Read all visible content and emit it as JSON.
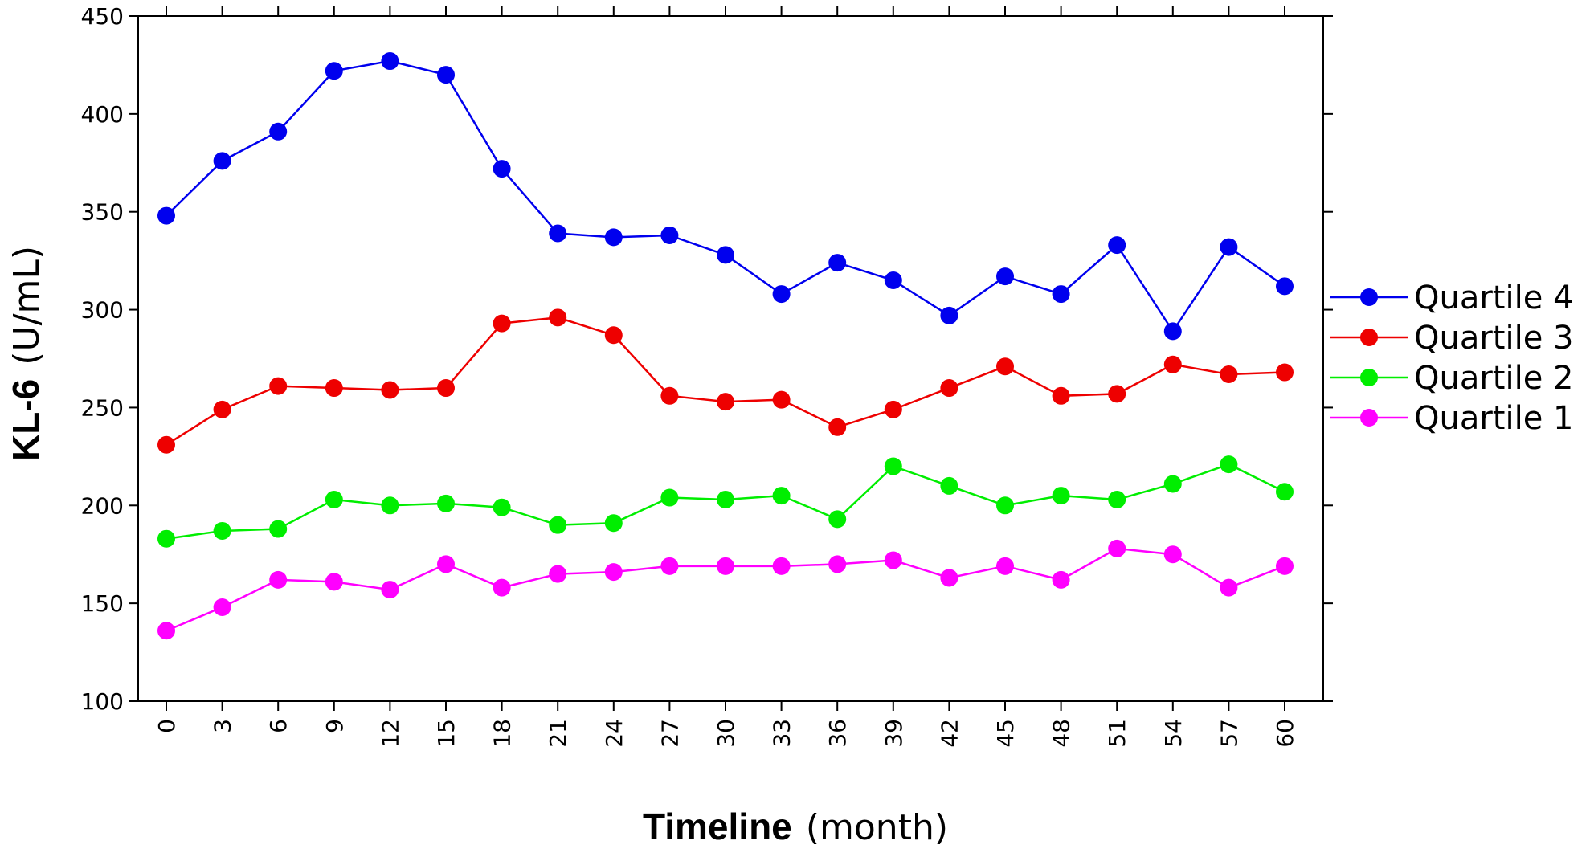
{
  "chart_data": {
    "type": "line",
    "xlabel": {
      "bold": "Timeline",
      "unit": "(month)"
    },
    "ylabel": {
      "bold": "KL-6",
      "unit": "(U/mL)"
    },
    "x": [
      0,
      3,
      6,
      9,
      12,
      15,
      18,
      21,
      24,
      27,
      30,
      33,
      36,
      39,
      42,
      45,
      48,
      51,
      54,
      57,
      60
    ],
    "x_tick_labels": [
      "0",
      "3",
      "6",
      "9",
      "12",
      "15",
      "18",
      "21",
      "24",
      "27",
      "30",
      "33",
      "36",
      "39",
      "42",
      "45",
      "48",
      "51",
      "54",
      "57",
      "60"
    ],
    "ylim": [
      100,
      450
    ],
    "y_ticks": [
      100,
      150,
      200,
      250,
      300,
      350,
      400,
      450
    ],
    "y_tick_labels": [
      "100",
      "150",
      "200",
      "250",
      "300",
      "350",
      "400",
      "450"
    ],
    "grid": false,
    "legend_position": "right",
    "series": [
      {
        "name": "Quartile 4",
        "color": "#0000ee",
        "values": [
          348,
          376,
          391,
          422,
          427,
          420,
          372,
          339,
          337,
          338,
          328,
          308,
          324,
          315,
          297,
          317,
          308,
          333,
          289,
          332,
          312
        ]
      },
      {
        "name": "Quartile 3",
        "color": "#ee0000",
        "values": [
          231,
          249,
          261,
          260,
          259,
          260,
          293,
          296,
          287,
          256,
          253,
          254,
          240,
          249,
          260,
          271,
          256,
          257,
          272,
          267,
          268
        ]
      },
      {
        "name": "Quartile 2",
        "color": "#00ee00",
        "values": [
          183,
          187,
          188,
          203,
          200,
          201,
          199,
          190,
          191,
          204,
          203,
          205,
          193,
          220,
          210,
          200,
          205,
          203,
          211,
          221,
          207
        ]
      },
      {
        "name": "Quartile 1",
        "color": "#ff00ff",
        "values": [
          136,
          148,
          162,
          161,
          157,
          170,
          158,
          165,
          166,
          169,
          169,
          169,
          170,
          172,
          163,
          169,
          162,
          178,
          175,
          158,
          169
        ]
      }
    ]
  }
}
